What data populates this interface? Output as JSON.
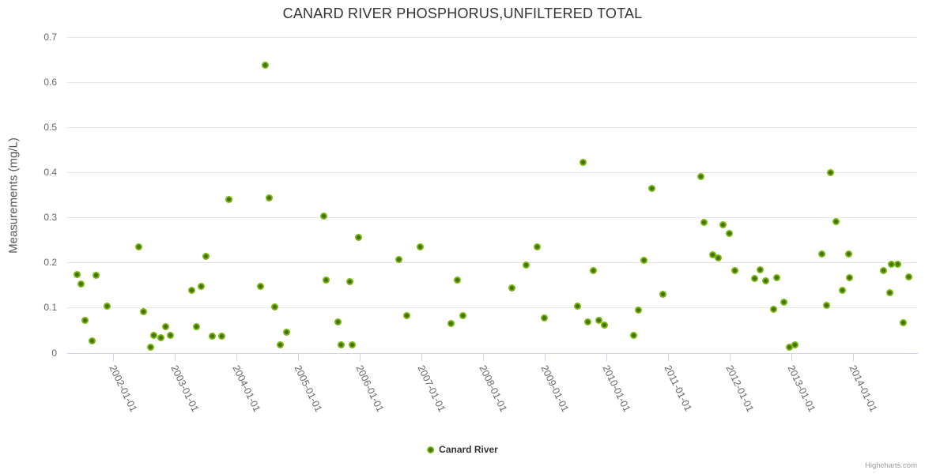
{
  "title": "CANARD RIVER PHOSPHORUS,UNFILTERED TOTAL",
  "y_axis": {
    "title": "Measurements (mg/L)",
    "ticks": [
      [
        0,
        "0"
      ],
      [
        0.1,
        "0.1"
      ],
      [
        0.2,
        "0.2"
      ],
      [
        0.3,
        "0.3"
      ],
      [
        0.4,
        "0.4"
      ],
      [
        0.5,
        "0.5"
      ],
      [
        0.6,
        "0.6"
      ],
      [
        0.7,
        "0.7"
      ]
    ]
  },
  "x_axis": {
    "ticks": [
      [
        2002,
        "2002-01-01"
      ],
      [
        2003,
        "2003-01-01"
      ],
      [
        2004,
        "2004-01-01"
      ],
      [
        2005,
        "2005-01-01"
      ],
      [
        2006,
        "2006-01-01"
      ],
      [
        2007,
        "2007-01-01"
      ],
      [
        2008,
        "2008-01-01"
      ],
      [
        2009,
        "2009-01-01"
      ],
      [
        2010,
        "2010-01-01"
      ],
      [
        2011,
        "2011-01-01"
      ],
      [
        2012,
        "2012-01-01"
      ],
      [
        2013,
        "2013-01-01"
      ],
      [
        2014,
        "2014-01-01"
      ]
    ]
  },
  "legend": {
    "label": "Canard River"
  },
  "credits": "Highcharts.com",
  "colors": {
    "marker_outer": "#76b40e",
    "marker_inner": "#47700a",
    "grid": "#e6e6e6",
    "axis_line": "#ccd6eb",
    "tick_label": "#666666",
    "title": "#333333",
    "credits": "#999999"
  },
  "chart_data": {
    "type": "scatter",
    "title": "CANARD RIVER PHOSPHORUS,UNFILTERED TOTAL",
    "xlabel": "",
    "ylabel": "Measurements (mg/L)",
    "xlim": [
      2001.25,
      2015.03
    ],
    "ylim": [
      0,
      0.7
    ],
    "x_unit": "decimal_year",
    "grid": true,
    "legend_position": "bottom",
    "series": [
      {
        "name": "Canard River",
        "points": [
          [
            2001.41,
            0.173
          ],
          [
            2001.47,
            0.153
          ],
          [
            2001.54,
            0.071
          ],
          [
            2001.66,
            0.027
          ],
          [
            2001.72,
            0.171
          ],
          [
            2001.9,
            0.103
          ],
          [
            2002.41,
            0.235
          ],
          [
            2002.49,
            0.091
          ],
          [
            2002.6,
            0.013
          ],
          [
            2002.66,
            0.039
          ],
          [
            2002.77,
            0.033
          ],
          [
            2002.85,
            0.058
          ],
          [
            2002.92,
            0.039
          ],
          [
            2003.27,
            0.139
          ],
          [
            2003.35,
            0.058
          ],
          [
            2003.42,
            0.148
          ],
          [
            2003.5,
            0.214
          ],
          [
            2003.6,
            0.036
          ],
          [
            2003.75,
            0.036
          ],
          [
            2003.87,
            0.34
          ],
          [
            2004.39,
            0.148
          ],
          [
            2004.46,
            0.637
          ],
          [
            2004.53,
            0.343
          ],
          [
            2004.62,
            0.101
          ],
          [
            2004.7,
            0.018
          ],
          [
            2004.81,
            0.046
          ],
          [
            2005.41,
            0.304
          ],
          [
            2005.45,
            0.161
          ],
          [
            2005.64,
            0.068
          ],
          [
            2005.69,
            0.017
          ],
          [
            2005.83,
            0.158
          ],
          [
            2005.87,
            0.017
          ],
          [
            2005.98,
            0.255
          ],
          [
            2006.63,
            0.206
          ],
          [
            2006.75,
            0.083
          ],
          [
            2006.97,
            0.234
          ],
          [
            2007.47,
            0.065
          ],
          [
            2007.57,
            0.161
          ],
          [
            2007.66,
            0.083
          ],
          [
            2008.46,
            0.143
          ],
          [
            2008.69,
            0.195
          ],
          [
            2008.87,
            0.235
          ],
          [
            2008.98,
            0.077
          ],
          [
            2009.53,
            0.103
          ],
          [
            2009.61,
            0.422
          ],
          [
            2009.69,
            0.069
          ],
          [
            2009.78,
            0.182
          ],
          [
            2009.87,
            0.072
          ],
          [
            2009.96,
            0.061
          ],
          [
            2010.43,
            0.038
          ],
          [
            2010.51,
            0.095
          ],
          [
            2010.6,
            0.205
          ],
          [
            2010.73,
            0.364
          ],
          [
            2010.91,
            0.13
          ],
          [
            2011.53,
            0.39
          ],
          [
            2011.58,
            0.289
          ],
          [
            2011.71,
            0.217
          ],
          [
            2011.81,
            0.211
          ],
          [
            2011.88,
            0.283
          ],
          [
            2011.98,
            0.264
          ],
          [
            2012.07,
            0.182
          ],
          [
            2012.39,
            0.165
          ],
          [
            2012.48,
            0.184
          ],
          [
            2012.58,
            0.159
          ],
          [
            2012.7,
            0.097
          ],
          [
            2012.76,
            0.167
          ],
          [
            2012.87,
            0.112
          ],
          [
            2012.96,
            0.013
          ],
          [
            2013.05,
            0.018
          ],
          [
            2013.48,
            0.219
          ],
          [
            2013.56,
            0.105
          ],
          [
            2013.62,
            0.399
          ],
          [
            2013.71,
            0.29
          ],
          [
            2013.82,
            0.138
          ],
          [
            2013.92,
            0.219
          ],
          [
            2013.94,
            0.166
          ],
          [
            2014.48,
            0.182
          ],
          [
            2014.59,
            0.134
          ],
          [
            2014.61,
            0.197
          ],
          [
            2014.71,
            0.196
          ],
          [
            2014.8,
            0.066
          ],
          [
            2014.89,
            0.168
          ]
        ]
      }
    ]
  }
}
